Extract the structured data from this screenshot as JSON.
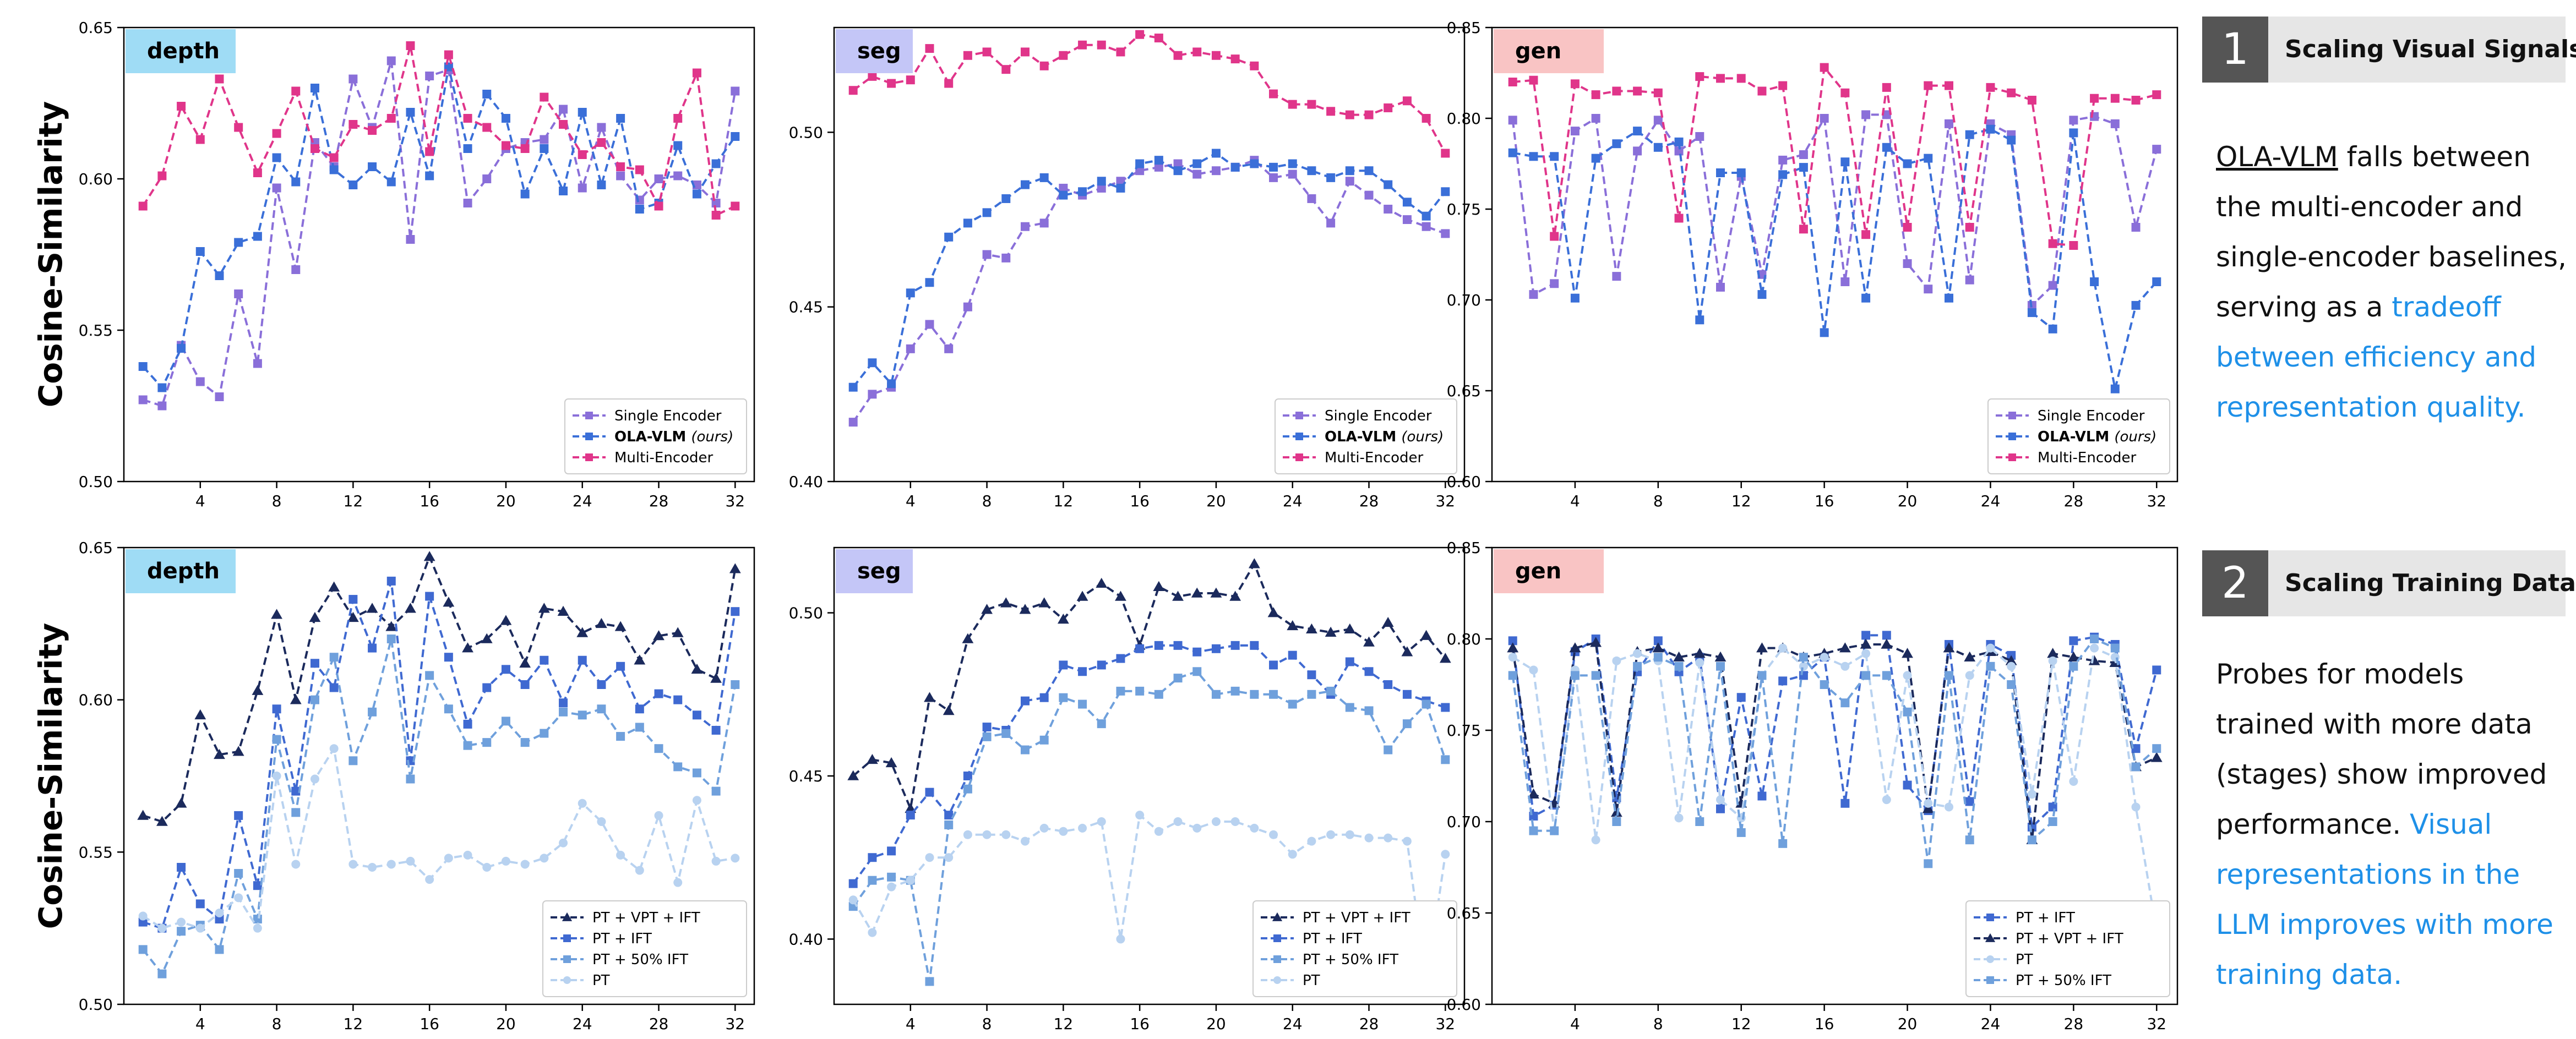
{
  "figure": {
    "ylabel": "Cosine-Similarity",
    "colors": {
      "single": "#8a6fd9",
      "ola": "#3a6fd8",
      "multi": "#e0358a",
      "pt_vpt_ift": "#1b2a5c",
      "pt_ift": "#3f69d1",
      "pt_50_ift": "#6fa0dc",
      "pt": "#b8d2f0",
      "tag_depth": "#9fdcf5",
      "tag_seg": "#c4c6f7",
      "tag_gen": "#f9c4c4",
      "highlight_text": "#1e90e8"
    }
  },
  "side": [
    {
      "num": "1",
      "title": "Scaling Visual Signals",
      "segments": [
        {
          "text": "OLA-VLM",
          "style": "ul"
        },
        {
          "text": " falls between the multi-encoder and single-encoder baselines, serving as a ",
          "style": ""
        },
        {
          "text": "tradeoff between efficiency and representation quality.",
          "style": "hl"
        }
      ]
    },
    {
      "num": "2",
      "title": "Scaling Training Data",
      "segments": [
        {
          "text": "Probes for models trained with more data (stages) show improved performance. ",
          "style": ""
        },
        {
          "text": "Visual representations in the LLM improves with more training data.",
          "style": "hl"
        }
      ]
    }
  ],
  "chart_data": [
    {
      "type": "line",
      "tag": "depth",
      "tag_color": "tag_depth",
      "ylim": [
        0.5,
        0.65
      ],
      "yticks": [
        0.5,
        0.55,
        0.6,
        0.65
      ],
      "xticks": [
        4,
        8,
        12,
        16,
        20,
        24,
        28,
        32
      ],
      "xlim": [
        0,
        33
      ],
      "legend": "bottom-right",
      "series": [
        {
          "name": "Single Encoder",
          "color": "single",
          "marker": "square",
          "values": [
            0.527,
            0.525,
            0.545,
            0.533,
            0.528,
            0.562,
            0.539,
            0.597,
            0.57,
            0.612,
            0.604,
            0.633,
            0.617,
            0.639,
            0.58,
            0.634,
            0.636,
            0.592,
            0.6,
            0.61,
            0.612,
            0.613,
            0.623,
            0.597,
            0.617,
            0.601,
            0.593,
            0.6,
            0.601,
            0.598,
            0.592,
            0.629
          ]
        },
        {
          "name": "OLA-VLM (ours)",
          "color": "ola",
          "marker": "square",
          "values": [
            0.538,
            0.531,
            0.544,
            0.576,
            0.568,
            0.579,
            0.581,
            0.607,
            0.599,
            0.63,
            0.603,
            0.598,
            0.604,
            0.599,
            0.622,
            0.601,
            0.637,
            0.61,
            0.628,
            0.62,
            0.595,
            0.61,
            0.596,
            0.622,
            0.598,
            0.62,
            0.59,
            0.592,
            0.611,
            0.595,
            0.605,
            0.614
          ]
        },
        {
          "name": "Multi-Encoder",
          "color": "multi",
          "marker": "square",
          "values": [
            0.591,
            0.601,
            0.624,
            0.613,
            0.633,
            0.617,
            0.602,
            0.615,
            0.629,
            0.61,
            0.607,
            0.618,
            0.616,
            0.62,
            0.644,
            0.609,
            0.641,
            0.62,
            0.617,
            0.611,
            0.61,
            0.627,
            0.618,
            0.608,
            0.612,
            0.604,
            0.603,
            0.591,
            0.62,
            0.635,
            0.588,
            0.591
          ]
        }
      ]
    },
    {
      "type": "line",
      "tag": "seg",
      "tag_color": "tag_seg",
      "ylim": [
        0.4,
        0.53
      ],
      "yticks": [
        0.4,
        0.45,
        0.5
      ],
      "xticks": [
        4,
        8,
        12,
        16,
        20,
        24,
        28,
        32
      ],
      "xlim": [
        0,
        33
      ],
      "legend": "bottom-right",
      "series": [
        {
          "name": "Single Encoder",
          "color": "single",
          "marker": "square",
          "values": [
            0.417,
            0.425,
            0.427,
            0.438,
            0.445,
            0.438,
            0.45,
            0.465,
            0.464,
            0.473,
            0.474,
            0.484,
            0.482,
            0.484,
            0.486,
            0.489,
            0.49,
            0.491,
            0.488,
            0.489,
            0.49,
            0.492,
            0.487,
            0.488,
            0.481,
            0.474,
            0.486,
            0.482,
            0.478,
            0.475,
            0.473,
            0.471
          ]
        },
        {
          "name": "OLA-VLM (ours)",
          "color": "ola",
          "marker": "square",
          "values": [
            0.427,
            0.434,
            0.428,
            0.454,
            0.457,
            0.47,
            0.474,
            0.477,
            0.481,
            0.485,
            0.487,
            0.482,
            0.483,
            0.486,
            0.484,
            0.491,
            0.492,
            0.489,
            0.491,
            0.494,
            0.49,
            0.491,
            0.49,
            0.491,
            0.489,
            0.487,
            0.489,
            0.489,
            0.485,
            0.48,
            0.476,
            0.483
          ]
        },
        {
          "name": "Multi-Encoder",
          "color": "multi",
          "marker": "square",
          "values": [
            0.512,
            0.516,
            0.514,
            0.515,
            0.524,
            0.514,
            0.522,
            0.523,
            0.518,
            0.523,
            0.519,
            0.522,
            0.525,
            0.525,
            0.523,
            0.528,
            0.527,
            0.522,
            0.523,
            0.522,
            0.521,
            0.519,
            0.511,
            0.508,
            0.508,
            0.506,
            0.505,
            0.505,
            0.507,
            0.509,
            0.504,
            0.494
          ]
        }
      ]
    },
    {
      "type": "line",
      "tag": "gen",
      "tag_color": "tag_gen",
      "ylim": [
        0.6,
        0.85
      ],
      "yticks": [
        0.6,
        0.65,
        0.7,
        0.75,
        0.8,
        0.85
      ],
      "xticks": [
        4,
        8,
        12,
        16,
        20,
        24,
        28,
        32
      ],
      "xlim": [
        0,
        33
      ],
      "legend": "bottom-right",
      "series": [
        {
          "name": "Single Encoder",
          "color": "single",
          "marker": "square",
          "values": [
            0.799,
            0.703,
            0.709,
            0.793,
            0.8,
            0.713,
            0.782,
            0.799,
            0.782,
            0.79,
            0.707,
            0.768,
            0.714,
            0.777,
            0.78,
            0.8,
            0.71,
            0.802,
            0.802,
            0.72,
            0.706,
            0.797,
            0.711,
            0.797,
            0.791,
            0.697,
            0.708,
            0.799,
            0.801,
            0.797,
            0.74,
            0.783
          ]
        },
        {
          "name": "OLA-VLM (ours)",
          "color": "ola",
          "marker": "square",
          "values": [
            0.781,
            0.779,
            0.779,
            0.701,
            0.778,
            0.786,
            0.793,
            0.784,
            0.787,
            0.689,
            0.77,
            0.77,
            0.703,
            0.769,
            0.773,
            0.682,
            0.776,
            0.701,
            0.784,
            0.775,
            0.778,
            0.701,
            0.791,
            0.794,
            0.788,
            0.693,
            0.684,
            0.792,
            0.71,
            0.651,
            0.697,
            0.71
          ]
        },
        {
          "name": "Multi-Encoder",
          "color": "multi",
          "marker": "square",
          "values": [
            0.82,
            0.821,
            0.735,
            0.819,
            0.813,
            0.815,
            0.815,
            0.814,
            0.745,
            0.823,
            0.822,
            0.822,
            0.815,
            0.818,
            0.739,
            0.828,
            0.814,
            0.736,
            0.817,
            0.74,
            0.818,
            0.818,
            0.74,
            0.817,
            0.814,
            0.81,
            0.731,
            0.73,
            0.811,
            0.811,
            0.81,
            0.813
          ]
        }
      ]
    },
    {
      "type": "line",
      "tag": "depth",
      "tag_color": "tag_depth",
      "ylim": [
        0.5,
        0.65
      ],
      "yticks": [
        0.5,
        0.55,
        0.6,
        0.65
      ],
      "xticks": [
        4,
        8,
        12,
        16,
        20,
        24,
        28,
        32
      ],
      "xlim": [
        0,
        33
      ],
      "legend": "bottom-right",
      "series": [
        {
          "name": "PT + VPT + IFT",
          "color": "pt_vpt_ift",
          "marker": "triangle",
          "values": [
            0.562,
            0.56,
            0.566,
            0.595,
            0.582,
            0.583,
            0.603,
            0.628,
            0.6,
            0.627,
            0.637,
            0.627,
            0.63,
            0.624,
            0.63,
            0.647,
            0.632,
            0.617,
            0.62,
            0.626,
            0.612,
            0.63,
            0.629,
            0.622,
            0.625,
            0.624,
            0.613,
            0.621,
            0.622,
            0.61,
            0.607,
            0.643
          ]
        },
        {
          "name": "PT + IFT",
          "color": "pt_ift",
          "marker": "square",
          "values": [
            0.527,
            0.525,
            0.545,
            0.533,
            0.528,
            0.562,
            0.539,
            0.597,
            0.57,
            0.612,
            0.604,
            0.633,
            0.617,
            0.639,
            0.58,
            0.634,
            0.614,
            0.592,
            0.604,
            0.61,
            0.605,
            0.613,
            0.599,
            0.613,
            0.605,
            0.611,
            0.597,
            0.602,
            0.6,
            0.595,
            0.59,
            0.629
          ]
        },
        {
          "name": "PT + 50% IFT",
          "color": "pt_50_ift",
          "marker": "square",
          "values": [
            0.518,
            0.51,
            0.524,
            0.526,
            0.518,
            0.543,
            0.528,
            0.587,
            0.563,
            0.6,
            0.614,
            0.58,
            0.596,
            0.62,
            0.574,
            0.608,
            0.597,
            0.585,
            0.586,
            0.593,
            0.586,
            0.589,
            0.596,
            0.595,
            0.597,
            0.588,
            0.591,
            0.584,
            0.578,
            0.576,
            0.57,
            0.605
          ]
        },
        {
          "name": "PT",
          "color": "pt",
          "marker": "circle",
          "values": [
            0.529,
            0.525,
            0.527,
            0.525,
            0.53,
            0.535,
            0.525,
            0.575,
            0.546,
            0.574,
            0.584,
            0.546,
            0.545,
            0.546,
            0.547,
            0.541,
            0.548,
            0.549,
            0.545,
            0.547,
            0.546,
            0.548,
            0.553,
            0.566,
            0.56,
            0.549,
            0.544,
            0.562,
            0.54,
            0.567,
            0.547,
            0.548
          ]
        }
      ]
    },
    {
      "type": "line",
      "tag": "seg",
      "tag_color": "tag_seg",
      "ylim": [
        0.38,
        0.52
      ],
      "yticks": [
        0.4,
        0.45,
        0.5
      ],
      "xticks": [
        4,
        8,
        12,
        16,
        20,
        24,
        28,
        32
      ],
      "xlim": [
        0,
        33
      ],
      "legend": "bottom-right",
      "series": [
        {
          "name": "PT + VPT + IFT",
          "color": "pt_vpt_ift",
          "marker": "triangle",
          "values": [
            0.45,
            0.455,
            0.454,
            0.44,
            0.474,
            0.47,
            0.492,
            0.501,
            0.503,
            0.501,
            0.503,
            0.498,
            0.505,
            0.509,
            0.505,
            0.49,
            0.508,
            0.505,
            0.506,
            0.506,
            0.505,
            0.515,
            0.5,
            0.496,
            0.495,
            0.494,
            0.495,
            0.491,
            0.497,
            0.488,
            0.493,
            0.486
          ]
        },
        {
          "name": "PT + IFT",
          "color": "pt_ift",
          "marker": "square",
          "values": [
            0.417,
            0.425,
            0.427,
            0.438,
            0.445,
            0.438,
            0.45,
            0.465,
            0.464,
            0.473,
            0.474,
            0.484,
            0.482,
            0.484,
            0.486,
            0.489,
            0.49,
            0.49,
            0.488,
            0.489,
            0.49,
            0.49,
            0.484,
            0.487,
            0.481,
            0.475,
            0.485,
            0.482,
            0.478,
            0.475,
            0.473,
            0.471
          ]
        },
        {
          "name": "PT + 50% IFT",
          "color": "pt_50_ift",
          "marker": "square",
          "values": [
            0.41,
            0.418,
            0.419,
            0.418,
            0.387,
            0.435,
            0.446,
            0.462,
            0.463,
            0.458,
            0.461,
            0.474,
            0.472,
            0.466,
            0.476,
            0.476,
            0.475,
            0.48,
            0.482,
            0.475,
            0.476,
            0.475,
            0.475,
            0.472,
            0.475,
            0.476,
            0.471,
            0.47,
            0.458,
            0.466,
            0.472,
            0.455
          ]
        },
        {
          "name": "PT",
          "color": "pt",
          "marker": "circle",
          "values": [
            0.412,
            0.402,
            0.416,
            0.418,
            0.425,
            0.425,
            0.432,
            0.432,
            0.432,
            0.43,
            0.434,
            0.433,
            0.434,
            0.436,
            0.4,
            0.438,
            0.433,
            0.436,
            0.434,
            0.436,
            0.436,
            0.434,
            0.432,
            0.426,
            0.43,
            0.432,
            0.432,
            0.431,
            0.431,
            0.43,
            0.386,
            0.426
          ]
        }
      ]
    },
    {
      "type": "line",
      "tag": "gen",
      "tag_color": "tag_gen",
      "ylim": [
        0.6,
        0.85
      ],
      "yticks": [
        0.6,
        0.65,
        0.7,
        0.75,
        0.8,
        0.85
      ],
      "xticks": [
        4,
        8,
        12,
        16,
        20,
        24,
        28,
        32
      ],
      "xlim": [
        0,
        33
      ],
      "legend": "bottom-right",
      "series": [
        {
          "name": "PT + IFT",
          "color": "pt_ift",
          "marker": "square",
          "values": [
            0.799,
            0.703,
            0.709,
            0.793,
            0.8,
            0.713,
            0.782,
            0.799,
            0.782,
            0.79,
            0.707,
            0.768,
            0.714,
            0.777,
            0.78,
            0.79,
            0.71,
            0.802,
            0.802,
            0.72,
            0.706,
            0.797,
            0.711,
            0.797,
            0.791,
            0.697,
            0.708,
            0.799,
            0.801,
            0.797,
            0.74,
            0.783
          ]
        },
        {
          "name": "PT + VPT + IFT",
          "color": "pt_vpt_ift",
          "marker": "triangle",
          "values": [
            0.795,
            0.715,
            0.71,
            0.795,
            0.798,
            0.705,
            0.793,
            0.795,
            0.79,
            0.792,
            0.79,
            0.71,
            0.795,
            0.795,
            0.79,
            0.792,
            0.795,
            0.797,
            0.797,
            0.792,
            0.707,
            0.795,
            0.79,
            0.793,
            0.788,
            0.69,
            0.792,
            0.79,
            0.788,
            0.787,
            0.73,
            0.735
          ]
        },
        {
          "name": "PT",
          "color": "pt",
          "marker": "circle",
          "values": [
            0.79,
            0.783,
            0.695,
            0.783,
            0.69,
            0.788,
            0.792,
            0.788,
            0.702,
            0.787,
            0.712,
            0.702,
            0.78,
            0.795,
            0.785,
            0.79,
            0.785,
            0.792,
            0.712,
            0.78,
            0.71,
            0.708,
            0.78,
            0.795,
            0.785,
            0.715,
            0.788,
            0.722,
            0.795,
            0.79,
            0.708,
            0.64
          ]
        },
        {
          "name": "PT + 50% IFT",
          "color": "pt_50_ift",
          "marker": "square",
          "values": [
            0.78,
            0.695,
            0.695,
            0.78,
            0.78,
            0.7,
            0.785,
            0.79,
            0.785,
            0.7,
            0.785,
            0.694,
            0.78,
            0.688,
            0.79,
            0.775,
            0.765,
            0.78,
            0.78,
            0.76,
            0.677,
            0.78,
            0.69,
            0.785,
            0.775,
            0.69,
            0.7,
            0.785,
            0.8,
            0.795,
            0.73,
            0.74
          ]
        }
      ]
    }
  ]
}
